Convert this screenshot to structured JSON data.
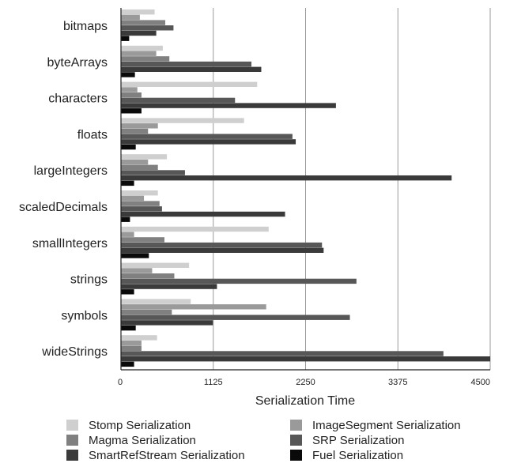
{
  "chart_data": {
    "type": "bar",
    "orientation": "horizontal",
    "title": "",
    "xlabel": "Serialization Time",
    "ylabel": "",
    "xlim": [
      0,
      4500
    ],
    "x_ticks": [
      "0",
      "1125",
      "2250",
      "3375",
      "4500"
    ],
    "x_tick_values": [
      0,
      1125,
      2250,
      3375,
      4500
    ],
    "grid": "vertical",
    "legend_position": "bottom",
    "categories": [
      "bitmaps",
      "byteArrays",
      "characters",
      "floats",
      "largeIntegers",
      "scaledDecimals",
      "smallIntegers",
      "strings",
      "symbols",
      "wideStrings"
    ],
    "series": [
      {
        "name": "Stomp Serialization",
        "color": "#cfcfcf",
        "values": [
          410,
          510,
          1660,
          1500,
          560,
          450,
          1800,
          830,
          850,
          440
        ]
      },
      {
        "name": "ImageSegment Serialization",
        "color": "#9a9a9a",
        "values": [
          230,
          430,
          200,
          450,
          330,
          280,
          160,
          380,
          1770,
          250
        ]
      },
      {
        "name": "Magma Serialization",
        "color": "#808080",
        "values": [
          540,
          590,
          250,
          330,
          450,
          470,
          530,
          650,
          620,
          250
        ]
      },
      {
        "name": "SRP Serialization",
        "color": "#575757",
        "values": [
          640,
          1590,
          1390,
          2090,
          780,
          500,
          2450,
          2870,
          2790,
          3930
        ]
      },
      {
        "name": "SmartRefStream Serialization",
        "color": "#3a3a3a",
        "values": [
          430,
          1710,
          2620,
          2130,
          4030,
          2000,
          2470,
          1170,
          1120,
          4500
        ]
      },
      {
        "name": "Fuel Serialization",
        "color": "#0a0a0a",
        "values": [
          100,
          170,
          250,
          180,
          160,
          110,
          340,
          160,
          180,
          160
        ]
      }
    ]
  }
}
